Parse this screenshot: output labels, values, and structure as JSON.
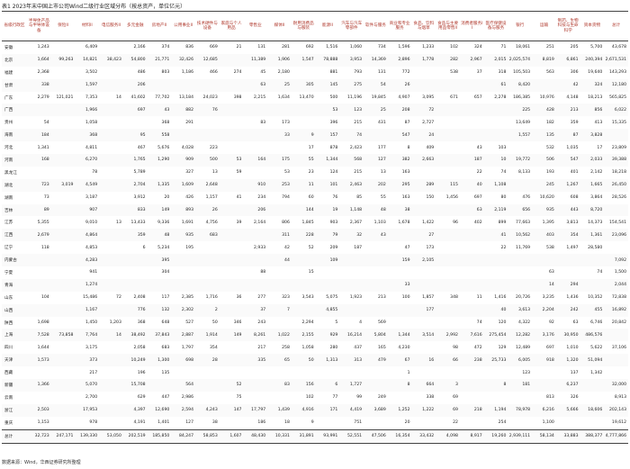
{
  "title": "表1 2023年末中国上市公司Wind二级行业区域分布（按总资产，单位亿元）",
  "table": {
    "header": [
      "省级行政区",
      "半导体产品与半导体设备",
      "保险II",
      "材料II",
      "电信服务II",
      "多元金融",
      "房地产II",
      "公用事业II",
      "技术硬件与设备",
      "家庭与个人用品",
      "零售业",
      "媒体II",
      "耐用消费品与服装",
      "能源II",
      "汽车与汽车零部件",
      "软件与服务",
      "商业和专业服务",
      "食品、饮料与烟草",
      "食品与主要用品零售II",
      "消费者服务II",
      "医疗保健设备与服务",
      "银行",
      "运输",
      "制药、生物科技与生命科学",
      "资本货物",
      "总计"
    ],
    "rows": [
      {
        "region": "安徽",
        "cells": [
          "1,243",
          null,
          "6,409",
          null,
          "2,166",
          "374",
          "836",
          "669",
          "21",
          "131",
          "281",
          "692",
          "1,516",
          "1,060",
          "734",
          "1,596",
          "1,233",
          "102",
          "324",
          "71",
          "18,061",
          "251",
          "205",
          "5,700",
          "43,678"
        ]
      },
      {
        "region": "北京",
        "cells": [
          "1,664",
          "99,263",
          "14,821",
          "38,423",
          "54,800",
          "21,771",
          "32,426",
          "12,685",
          null,
          "11,389",
          "1,906",
          "1,547",
          "78,888",
          "3,953",
          "14,369",
          "2,896",
          "1,778",
          "282",
          "2,967",
          "2,015",
          "2,025,574",
          "8,819",
          "6,861",
          "240,394",
          "2,671,531"
        ]
      },
      {
        "region": "福建",
        "cells": [
          "2,368",
          null,
          "3,502",
          null,
          "486",
          "803",
          "1,186",
          "466",
          "274",
          "45",
          "2,180",
          null,
          "881",
          "793",
          "131",
          "772",
          null,
          "538",
          "37",
          "318",
          "105,503",
          "563",
          "306",
          "19,640",
          "143,293"
        ]
      },
      {
        "region": "甘肃",
        "cells": [
          "338",
          null,
          "1,597",
          null,
          "206",
          null,
          null,
          null,
          null,
          "63",
          "25",
          "305",
          "145",
          "275",
          "54",
          "26",
          null,
          null,
          null,
          "61",
          "8,420",
          null,
          "42",
          "324",
          "12,180"
        ]
      },
      {
        "region": "广东",
        "cells": [
          "2,279",
          "121,021",
          "7,353",
          "14",
          "41,602",
          "77,702",
          "13,184",
          "24,023",
          "398",
          "2,215",
          "1,634",
          "13,470",
          "500",
          "11,196",
          "19,845",
          "4,907",
          "3,095",
          "671",
          "657",
          "2,278",
          "186,385",
          "10,976",
          "4,148",
          "18,213",
          "565,825"
        ]
      },
      {
        "region": "广西",
        "cells": [
          null,
          null,
          "1,966",
          null,
          "697",
          "43",
          "882",
          "76",
          null,
          null,
          null,
          null,
          "53",
          "123",
          "25",
          "208",
          "72",
          null,
          null,
          null,
          "225",
          "428",
          "213",
          "856",
          "6,022"
        ]
      },
      {
        "region": "贵州",
        "cells": [
          "54",
          null,
          "1,058",
          null,
          null,
          "368",
          "291",
          null,
          null,
          "83",
          "173",
          null,
          "396",
          "215",
          "431",
          "87",
          "2,727",
          null,
          null,
          null,
          "13,649",
          "182",
          "359",
          "413",
          "15,335"
        ]
      },
      {
        "region": "海南",
        "cells": [
          "184",
          null,
          "368",
          null,
          "95",
          "558",
          null,
          null,
          null,
          null,
          "33",
          "9",
          "157",
          "74",
          null,
          "547",
          "24",
          null,
          null,
          null,
          "1,557",
          "135",
          "87",
          "3,828",
          null
        ]
      },
      {
        "region": "河北",
        "cells": [
          "1,341",
          null,
          "4,811",
          null,
          "467",
          "5,676",
          "4,028",
          "223",
          null,
          null,
          null,
          "17",
          "878",
          "2,423",
          "177",
          "8",
          "409",
          null,
          "43",
          "103",
          null,
          "532",
          "1,035",
          "17",
          "23,809"
        ]
      },
      {
        "region": "河南",
        "cells": [
          "168",
          null,
          "6,270",
          null,
          "1,765",
          "1,290",
          "909",
          "500",
          "53",
          "164",
          "175",
          "55",
          "1,344",
          "568",
          "127",
          "382",
          "2,663",
          null,
          "187",
          "10",
          "19,772",
          "506",
          "547",
          "2,033",
          "39,388"
        ]
      },
      {
        "region": "黑龙江",
        "cells": [
          null,
          null,
          "78",
          null,
          "5,789",
          null,
          "327",
          "13",
          "59",
          null,
          "53",
          "23",
          "124",
          "215",
          "13",
          "163",
          null,
          null,
          "22",
          "74",
          "8,133",
          "193",
          "401",
          "2,142",
          "18,218"
        ]
      },
      {
        "region": "湖北",
        "cells": [
          "723",
          "3,019",
          "4,549",
          null,
          "2,704",
          "1,335",
          "1,609",
          "2,648",
          null,
          "910",
          "253",
          "11",
          "101",
          "2,463",
          "202",
          "295",
          "289",
          "115",
          "40",
          "1,108",
          null,
          "245",
          "1,267",
          "1,665",
          "26,450"
        ]
      },
      {
        "region": "湖南",
        "cells": [
          "73",
          null,
          "3,187",
          null,
          "3,912",
          "20",
          "426",
          "1,157",
          "41",
          "234",
          "794",
          "60",
          "76",
          "85",
          "55",
          "163",
          "150",
          "1,456",
          "697",
          "80",
          "476",
          "10,620",
          "608",
          "3,864",
          "28,526"
        ]
      },
      {
        "region": "吉林",
        "cells": [
          "89",
          null,
          "907",
          null,
          "833",
          "149",
          "893",
          "26",
          null,
          "206",
          null,
          "144",
          "19",
          "1,148",
          "48",
          "38",
          null,
          null,
          "63",
          "2,119",
          "656",
          "935",
          "443",
          "8,720",
          null
        ]
      },
      {
        "region": "江苏",
        "cells": [
          "5,355",
          null,
          "9,010",
          "13",
          "13,433",
          "9,336",
          "1,691",
          "4,756",
          "39",
          "2,164",
          "806",
          "1,845",
          "903",
          "2,367",
          "1,103",
          "1,678",
          "1,422",
          "96",
          "402",
          "899",
          "77,663",
          "1,395",
          "3,813",
          "14,373",
          "154,541"
        ]
      },
      {
        "region": "江西",
        "cells": [
          "2,679",
          null,
          "4,864",
          null,
          "359",
          "48",
          "935",
          "683",
          null,
          null,
          "311",
          "228",
          "79",
          "32",
          "43",
          null,
          "27",
          null,
          null,
          "41",
          "10,562",
          "403",
          "354",
          "1,361",
          "23,096"
        ]
      },
      {
        "region": "辽宁",
        "cells": [
          "118",
          null,
          "4,853",
          null,
          "6",
          "5,234",
          "195",
          null,
          null,
          "2,933",
          "42",
          "52",
          "209",
          "187",
          null,
          "47",
          "173",
          null,
          null,
          "22",
          "11,769",
          "538",
          "1,497",
          "28,580",
          null
        ]
      },
      {
        "region": "内蒙古",
        "cells": [
          null,
          null,
          "4,283",
          null,
          null,
          "395",
          null,
          null,
          null,
          null,
          "44",
          null,
          "109",
          null,
          null,
          "159",
          "2,105",
          null,
          null,
          null,
          null,
          null,
          null,
          null,
          "7,092"
        ]
      },
      {
        "region": "宁夏",
        "cells": [
          null,
          null,
          "941",
          null,
          null,
          "304",
          null,
          null,
          null,
          "88",
          null,
          "15",
          null,
          null,
          null,
          null,
          null,
          null,
          null,
          null,
          null,
          "63",
          null,
          "74",
          "1,500"
        ]
      },
      {
        "region": "青海",
        "cells": [
          null,
          null,
          "1,274",
          null,
          null,
          null,
          null,
          null,
          null,
          null,
          null,
          null,
          null,
          null,
          null,
          "33",
          null,
          null,
          null,
          null,
          null,
          "14",
          "294",
          null,
          "2,044"
        ]
      },
      {
        "region": "山东",
        "cells": [
          "104",
          null,
          "15,486",
          "72",
          "2,408",
          "117",
          "2,385",
          "1,716",
          "36",
          "277",
          "323",
          "3,543",
          "5,075",
          "1,923",
          "213",
          "100",
          "1,857",
          "348",
          "11",
          "1,416",
          "20,726",
          "3,235",
          "1,436",
          "10,352",
          "72,838"
        ]
      },
      {
        "region": "山西",
        "cells": [
          null,
          null,
          "1,167",
          null,
          "776",
          "132",
          "2,302",
          "2",
          null,
          "37",
          "7",
          null,
          "4,855",
          null,
          null,
          null,
          "177",
          null,
          null,
          "40",
          "3,613",
          "2,204",
          "242",
          "455",
          "16,892"
        ]
      },
      {
        "region": "陕西",
        "cells": [
          "1,698",
          null,
          "1,450",
          "1,203",
          "368",
          "648",
          "527",
          "50",
          "346",
          "243",
          null,
          "2,294",
          "5",
          "4",
          "569",
          null,
          null,
          null,
          "74",
          "120",
          "4,322",
          "92",
          "63",
          "6,746",
          "20,842"
        ]
      },
      {
        "region": "上海",
        "cells": [
          "7,528",
          "73,858",
          "7,764",
          "14",
          "38,492",
          "37,843",
          "2,887",
          "1,914",
          "149",
          "8,261",
          "1,022",
          "2,155",
          "929",
          "16,214",
          "5,804",
          "1,344",
          "3,514",
          "2,992",
          "7,616",
          "275,454",
          "12,282",
          "3,176",
          "30,950",
          "486,576",
          null
        ]
      },
      {
        "region": "四川",
        "cells": [
          "1,644",
          null,
          "3,175",
          null,
          "2,058",
          "683",
          "1,797",
          "354",
          null,
          "217",
          "258",
          "1,058",
          "280",
          "437",
          "165",
          "4,230",
          null,
          "98",
          "472",
          "129",
          "12,489",
          "697",
          "1,010",
          "5,622",
          "37,106"
        ]
      },
      {
        "region": "天津",
        "cells": [
          "1,573",
          null,
          "373",
          null,
          "10,249",
          "1,300",
          "698",
          "28",
          null,
          "335",
          "65",
          "50",
          "1,313",
          "313",
          "479",
          "67",
          "16",
          "66",
          "238",
          "25,733",
          "6,005",
          "918",
          "1,320",
          "51,094",
          null
        ]
      },
      {
        "region": "西藏",
        "cells": [
          null,
          null,
          "217",
          null,
          "196",
          "135",
          null,
          null,
          null,
          null,
          null,
          null,
          null,
          null,
          null,
          "1",
          null,
          null,
          null,
          null,
          "123",
          null,
          "137",
          "1,342",
          null
        ]
      },
      {
        "region": "新疆",
        "cells": [
          "1,366",
          null,
          "5,070",
          null,
          "15,708",
          null,
          "564",
          null,
          "52",
          null,
          "83",
          "156",
          "6",
          "1,727",
          null,
          "8",
          "664",
          "3",
          null,
          "8",
          "181",
          null,
          "6,237",
          null,
          "32,000"
        ]
      },
      {
        "region": "云南",
        "cells": [
          null,
          null,
          "2,700",
          null,
          "629",
          "447",
          "2,986",
          null,
          "75",
          null,
          null,
          "102",
          "77",
          "99",
          "249",
          null,
          "338",
          "69",
          null,
          null,
          null,
          "813",
          "326",
          null,
          "8,913"
        ]
      },
      {
        "region": "浙江",
        "cells": [
          "2,503",
          null,
          "17,953",
          null,
          "4,397",
          "12,690",
          "2,594",
          "4,243",
          "147",
          "17,797",
          "1,439",
          "4,916",
          "171",
          "4,419",
          "3,689",
          "1,252",
          "1,222",
          "69",
          "218",
          "1,194",
          "78,978",
          "6,216",
          "5,666",
          "18,606",
          "202,143"
        ]
      },
      {
        "region": "重庆",
        "cells": [
          "1,153",
          null,
          "978",
          null,
          "4,191",
          "1,401",
          "127",
          "38",
          null,
          "186",
          "18",
          "9",
          null,
          "751",
          null,
          "20",
          null,
          "22",
          null,
          "254",
          null,
          "1,100",
          null,
          null,
          "19,612"
        ]
      },
      {
        "region": "总计",
        "cells": [
          "32,723",
          "247,171",
          "139,330",
          "53,050",
          "202,519",
          "185,850",
          "84,247",
          "58,853",
          "1,607",
          "48,430",
          "10,331",
          "31,891",
          "93,991",
          "52,551",
          "47,506",
          "16,354",
          "33,432",
          "4,098",
          "8,917",
          "19,260",
          "2,939,111",
          "58,134",
          "33,883",
          "388,377",
          "4,777,866"
        ]
      }
    ]
  },
  "source": "数据来源：Wind，华西证券研究所整理"
}
